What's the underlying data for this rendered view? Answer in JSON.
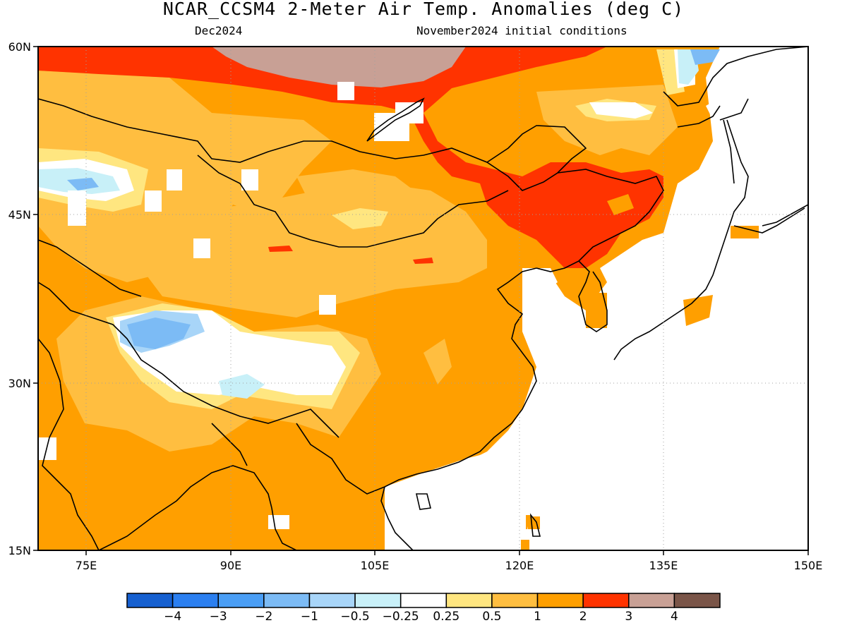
{
  "header": {
    "title": "NCAR_CCSM4 2-Meter Air Temp. Anomalies (deg C)",
    "subtitle_left": "Dec2024",
    "subtitle_right": "November2024 initial conditions"
  },
  "map": {
    "lon_range": [
      70,
      150
    ],
    "lat_range": [
      15,
      60
    ],
    "lon_ticks": [
      "75E",
      "90E",
      "105E",
      "120E",
      "135E",
      "150E"
    ],
    "lat_ticks": [
      "60N",
      "45N",
      "30N",
      "15N"
    ],
    "grid_lines": "dotted"
  },
  "colorbar": {
    "labels": [
      "-4",
      "-3",
      "-2",
      "-1",
      "-0.5",
      "-0.25",
      "0.25",
      "0.5",
      "1",
      "2",
      "3",
      "4"
    ],
    "colors": [
      "#1660d0",
      "#2b7ff0",
      "#4a9ef5",
      "#7cbbf5",
      "#a8d5f8",
      "#c8f0f8",
      "#ffffff",
      "#ffe680",
      "#ffbe40",
      "#ff9f00",
      "#ff3300",
      "#c8a095",
      "#7a5548"
    ]
  },
  "colors": {
    "anomaly_0_25_to_0_5": "#ffe680",
    "anomaly_0_5_to_1": "#ffbe40",
    "anomaly_1_to_2": "#ff9f00",
    "anomaly_2_to_3": "#ff3300",
    "anomaly_3_to_4": "#c8a095",
    "anomaly_neg_0_25": "#c8f0f8",
    "anomaly_neg_0_5": "#a8d5f8",
    "anomaly_neg_1": "#7cbbf5",
    "anomaly_neg_2": "#4a9ef5"
  }
}
